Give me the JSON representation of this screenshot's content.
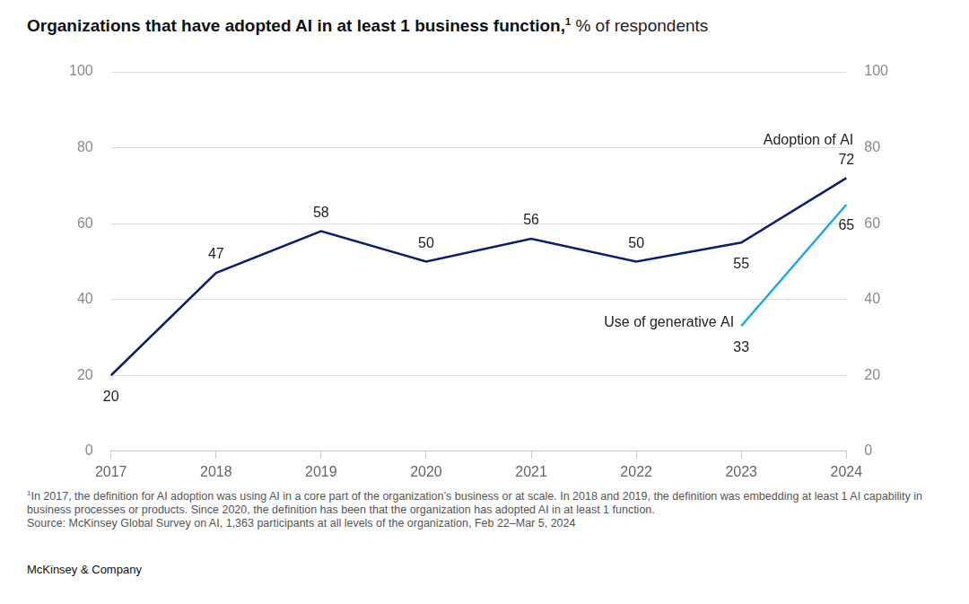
{
  "chart_data": {
    "type": "line",
    "title": "Organizations that have adopted AI in at least 1 business function,",
    "title_mark": "1",
    "subtitle": "% of respondents",
    "categories": [
      "2017",
      "2018",
      "2019",
      "2020",
      "2021",
      "2022",
      "2023",
      "2024"
    ],
    "series": [
      {
        "name": "Adoption of AI",
        "color": "#0b1f6b",
        "values": [
          20,
          47,
          58,
          50,
          56,
          50,
          55,
          72
        ]
      },
      {
        "name": "Use of generative AI",
        "color": "#1aa7ec",
        "values": [
          null,
          null,
          null,
          null,
          null,
          null,
          33,
          65
        ]
      }
    ],
    "ylim": [
      0,
      100
    ],
    "yticks": [
      0,
      20,
      40,
      60,
      80,
      100
    ],
    "y2lim": [
      0,
      100
    ],
    "y2ticks": [
      0,
      20,
      40,
      60,
      80,
      100
    ],
    "grid": true,
    "data_labels": true,
    "footnote_mark": "1",
    "footnote": "In 2017, the definition for AI adoption was using AI in a core part of the organization’s business or at scale. In 2018 and 2019, the definition was embedding at least 1 AI capability in business processes or products. Since 2020, the definition has been that the organization has adopted AI in at least 1 function.",
    "source": "Source: McKinsey Global Survey on AI, 1,363 participants at all levels of the organization, Feb 22–Mar 5, 2024",
    "brand": "McKinsey & Company"
  }
}
